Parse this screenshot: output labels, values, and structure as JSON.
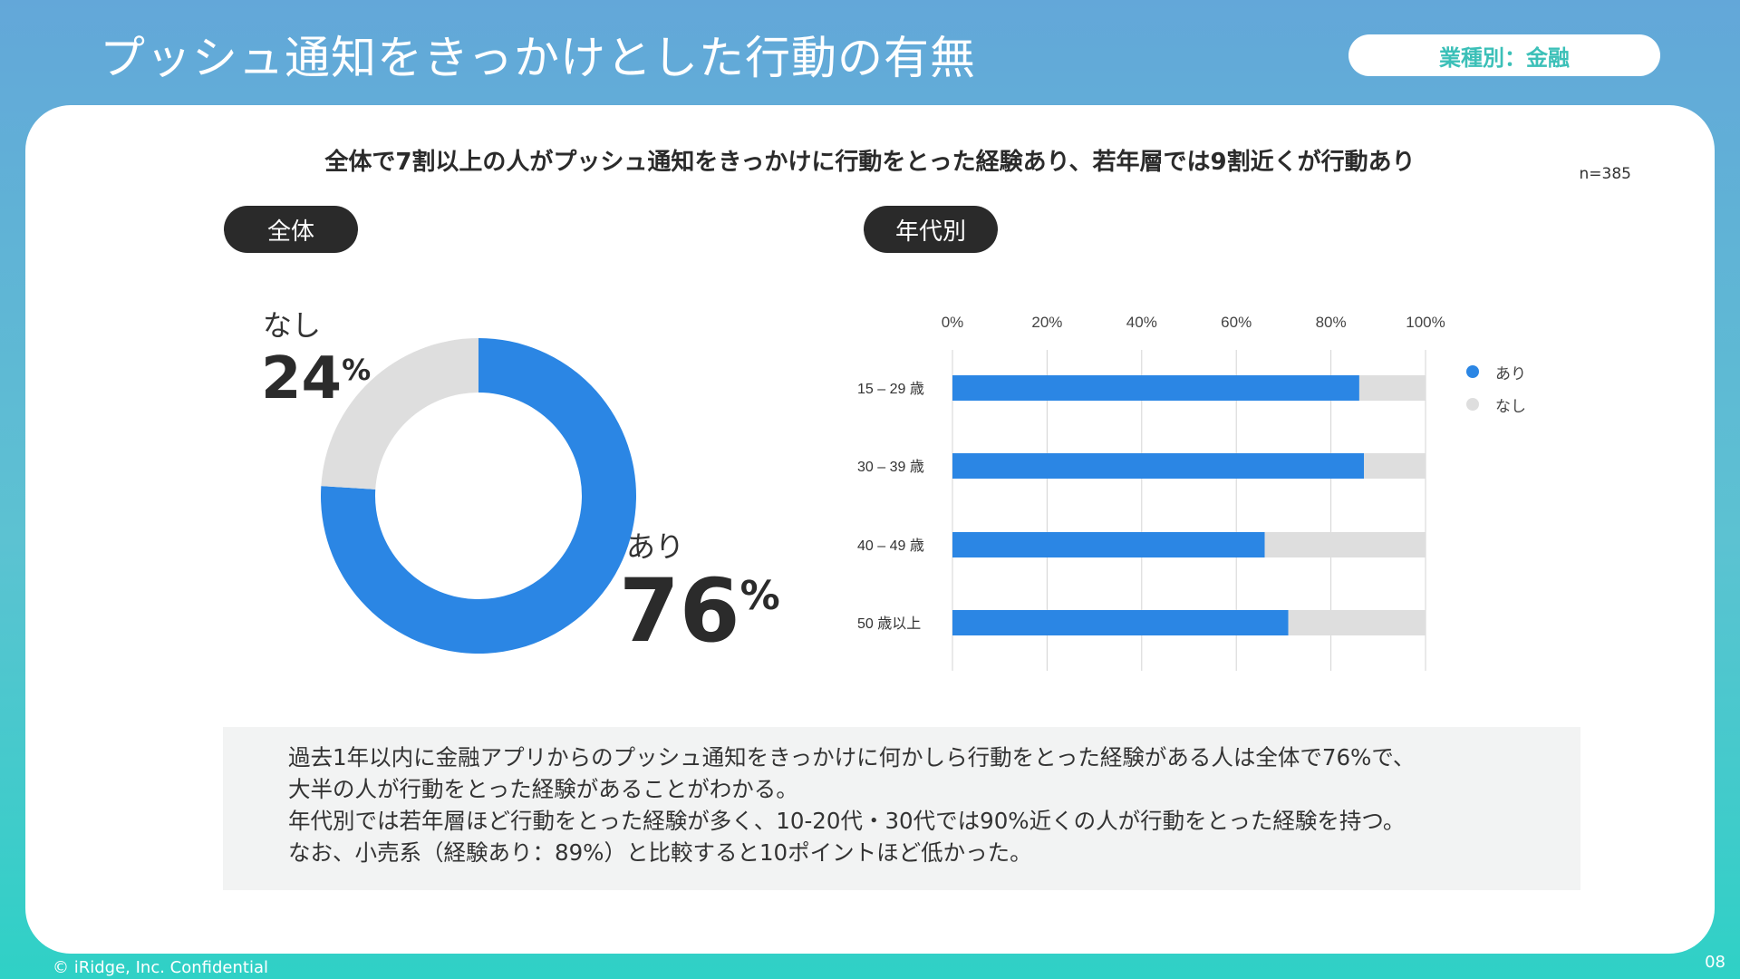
{
  "slide": {
    "title": "プッシュ通知をきっかけとした行動の有無",
    "industry_badge": "業種別：金融",
    "headline": "全体で7割以上の人がプッシュ通知をきっかけに行動をとった経験あり、若年層では9割近くが行動あり",
    "sample_size": "n=385",
    "section_overall": "全体",
    "section_by_age": "年代別",
    "donut": {
      "none_label": "なし",
      "none_value": "24",
      "yes_label": "あり",
      "yes_value": "76",
      "unit": "%"
    },
    "summary_lines": [
      "過去1年以内に金融アプリからのプッシュ通知をきっかけに何かしら行動をとった経験がある人は全体で76%で、",
      "大半の人が行動をとった経験があることがわかる。",
      "年代別では若年層ほど行動をとった経験が多く、10-20代・30代では90%近くの人が行動をとった経験を持つ。",
      "なお、小売系（経験あり：89%）と比較すると10ポイントほど低かった。"
    ],
    "footer_copyright": "© iRidge, Inc. Confidential",
    "page_number": "08"
  },
  "colors": {
    "yes": "#2b86e4",
    "none": "#dedede",
    "accent": "#3cc0b8"
  },
  "chart_data": [
    {
      "type": "pie",
      "title": "全体",
      "categories": [
        "あり",
        "なし"
      ],
      "values": [
        76,
        24
      ]
    },
    {
      "type": "bar",
      "orientation": "horizontal",
      "stacked": true,
      "title": "年代別",
      "categories": [
        "15 – 29 歳",
        "30 – 39 歳",
        "40 – 49 歳",
        "50 歳以上"
      ],
      "series": [
        {
          "name": "あり",
          "values": [
            86,
            87,
            66,
            71
          ]
        },
        {
          "name": "なし",
          "values": [
            14,
            13,
            34,
            29
          ]
        }
      ],
      "xlim": [
        0,
        100
      ],
      "x_ticks": [
        "0%",
        "20%",
        "40%",
        "60%",
        "80%",
        "100%"
      ],
      "grid": true,
      "legend": "right"
    }
  ]
}
